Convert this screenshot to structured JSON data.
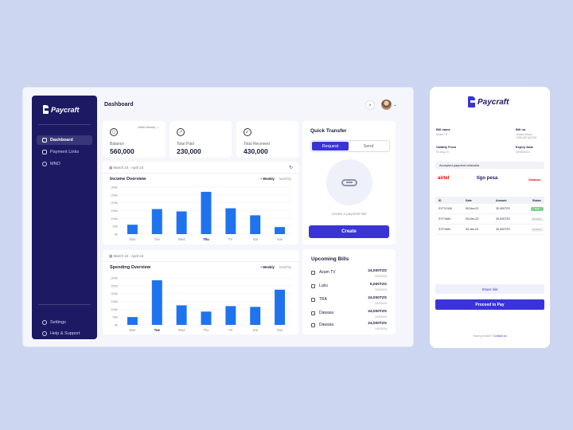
{
  "colors": {
    "background": "#cdd6f1",
    "sidebar": "#1b1a63",
    "accent": "#3a34d6",
    "bar": "#1f73ee",
    "paid": "#7bd08b"
  },
  "brand": {
    "name": "Paycraft"
  },
  "sidebar": {
    "items": [
      {
        "label": "Dashboard",
        "icon": "home-icon",
        "active": true
      },
      {
        "label": "Payment Links",
        "icon": "link-icon",
        "active": false
      },
      {
        "label": "MNO",
        "icon": "signal-icon",
        "active": false
      }
    ],
    "footer": [
      {
        "label": "Settings",
        "icon": "gear-icon"
      },
      {
        "label": "Help & Support",
        "icon": "help-icon"
      }
    ]
  },
  "header": {
    "title": "Dashboard"
  },
  "stats": [
    {
      "label": "Balance",
      "value": "560,000",
      "dropdown": "Airtel Money",
      "icon": "wallet-icon"
    },
    {
      "label": "Total Paid",
      "value": "230,000",
      "icon": "arrow-up-icon"
    },
    {
      "label": "Total Received",
      "value": "430,000",
      "icon": "arrow-down-icon"
    }
  ],
  "charts_meta": {
    "income": {
      "date_range": "March 24 - April 24",
      "title": "Income Overview",
      "toggle_on": "Weekly",
      "toggle_off": "Monthly"
    },
    "spending": {
      "date_range": "March 24 - April 24",
      "title": "Spending Overview",
      "toggle_on": "Weekly",
      "toggle_off": "Monthly"
    }
  },
  "chart_data": [
    {
      "type": "bar",
      "title": "Income Overview",
      "categories": [
        "Mon",
        "Tue",
        "Wed",
        "Thu",
        "Fri",
        "Sat",
        "Sun"
      ],
      "values": [
        60,
        160,
        145,
        270,
        165,
        120,
        45
      ],
      "yticks": [
        "300k",
        "250k",
        "200k",
        "150k",
        "100k",
        "50k",
        "0k"
      ],
      "ylim": [
        0,
        300
      ],
      "highlight": "Thu"
    },
    {
      "type": "bar",
      "title": "Spending Overview",
      "categories": [
        "Mon",
        "Tue",
        "Wed",
        "Thu",
        "Fri",
        "Sat",
        "Sun"
      ],
      "values": [
        50,
        285,
        125,
        85,
        120,
        115,
        225
      ],
      "yticks": [
        "300k",
        "250k",
        "200k",
        "150k",
        "100k",
        "50k",
        "0k"
      ],
      "ylim": [
        0,
        300
      ],
      "highlight": "Tue"
    }
  ],
  "quick_transfer": {
    "title": "Quick Transfer",
    "tab_request": "Request",
    "tab_send": "Send",
    "hint": "Create a payment link",
    "create_label": "Create"
  },
  "upcoming_bills": {
    "title": "Upcoming Bills",
    "rows": [
      {
        "name": "Azam TV",
        "amount": "24,000TZS",
        "date": "24/03/24"
      },
      {
        "name": "Luku",
        "amount": "5,000TZS",
        "date": "24/03/24"
      },
      {
        "name": "TRA",
        "amount": "24,000TZS",
        "date": "24/03/24"
      },
      {
        "name": "Dawasa",
        "amount": "24,000TZS",
        "date": "24/03/24"
      },
      {
        "name": "Dawasa",
        "amount": "24,000TZS",
        "date": "24/03/24"
      }
    ]
  },
  "payment_link": {
    "bill_name_label": "Bill name",
    "bill_name_value": "Azam TV",
    "bill_no_label": "Bill no.",
    "bill_no_value": "James Wood\n+255 657461234",
    "validity_label": "Validity From",
    "validity_value": "30 Aug 23",
    "expiry_label": "Expiry Date",
    "expiry_value": "30/08/2023",
    "networks_label": "Accepted payment networks",
    "networks": [
      "airtel",
      "tigo pesa",
      "Vodacom"
    ],
    "table_headers": [
      "ID",
      "Date",
      "Amount",
      "Status"
    ],
    "table_rows": [
      {
        "id": "SYTV1100",
        "date": "05.Nov.23",
        "amount": "30,000TZS",
        "status": "Paid"
      },
      {
        "id": "SYTV680",
        "date": "05.Dec.23",
        "amount": "30,000TZS",
        "status": "Pending"
      },
      {
        "id": "SYTV681",
        "date": "05.Jan.24",
        "amount": "30,000TZS",
        "status": "Pending"
      }
    ],
    "share_label": "Share link",
    "pay_label": "Proceed to Pay",
    "footer_text": "Having trouble?",
    "footer_link": "Contact us"
  }
}
